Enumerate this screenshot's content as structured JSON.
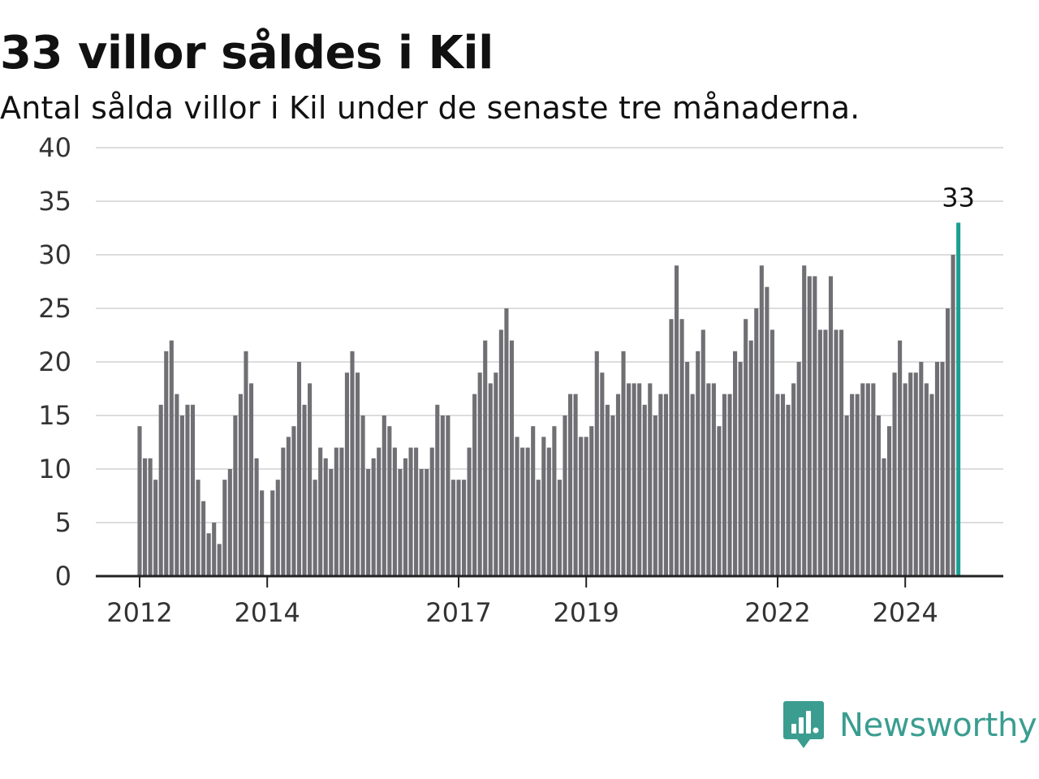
{
  "header": {
    "title": "33 villor såldes i Kil",
    "subtitle": "Antal sålda villor i Kil under de senaste tre månaderna."
  },
  "brand": {
    "name": "Newsworthy",
    "color": "#3a9d90",
    "icon": "newsworthy-logo-icon"
  },
  "colors": {
    "bar": "#6f6f74",
    "highlight": "#1a9e91"
  },
  "chart_data": {
    "type": "bar",
    "title": "33 villor såldes i Kil",
    "subtitle": "Antal sålda villor i Kil under de senaste tre månaderna.",
    "xlabel": "",
    "ylabel": "",
    "ylim": [
      0,
      40
    ],
    "yticks": [
      0,
      5,
      10,
      15,
      20,
      25,
      30,
      35,
      40
    ],
    "xticks": [
      {
        "label": "2012",
        "x": 2012
      },
      {
        "label": "2014",
        "x": 2014
      },
      {
        "label": "2017",
        "x": 2017
      },
      {
        "label": "2019",
        "x": 2019
      },
      {
        "label": "2022",
        "x": 2022
      },
      {
        "label": "2024",
        "x": 2024
      }
    ],
    "x_start": 2012,
    "bar_step_years": 0.08333,
    "grid": true,
    "legend": "none",
    "values": [
      14,
      11,
      11,
      9,
      16,
      21,
      22,
      17,
      15,
      16,
      16,
      9,
      7,
      4,
      5,
      3,
      9,
      10,
      15,
      17,
      21,
      18,
      11,
      8,
      0,
      8,
      9,
      12,
      13,
      14,
      20,
      16,
      18,
      9,
      12,
      11,
      10,
      12,
      12,
      19,
      21,
      19,
      15,
      10,
      11,
      12,
      15,
      14,
      12,
      10,
      11,
      12,
      12,
      10,
      10,
      12,
      16,
      15,
      15,
      9,
      9,
      9,
      12,
      17,
      19,
      22,
      18,
      19,
      23,
      25,
      22,
      13,
      12,
      12,
      14,
      9,
      13,
      12,
      14,
      9,
      15,
      17,
      17,
      13,
      13,
      14,
      21,
      19,
      16,
      15,
      17,
      21,
      18,
      18,
      18,
      16,
      18,
      15,
      17,
      17,
      24,
      29,
      24,
      20,
      17,
      21,
      23,
      18,
      18,
      14,
      17,
      17,
      21,
      20,
      24,
      22,
      25,
      29,
      27,
      23,
      17,
      17,
      16,
      18,
      20,
      29,
      28,
      28,
      23,
      23,
      28,
      23,
      23,
      15,
      17,
      17,
      18,
      18,
      18,
      15,
      11,
      14,
      19,
      22,
      18,
      19,
      19,
      20,
      18,
      17,
      20,
      20,
      25,
      30,
      33
    ],
    "highlight_last": true,
    "annotations": [
      {
        "label": "33"
      }
    ]
  }
}
